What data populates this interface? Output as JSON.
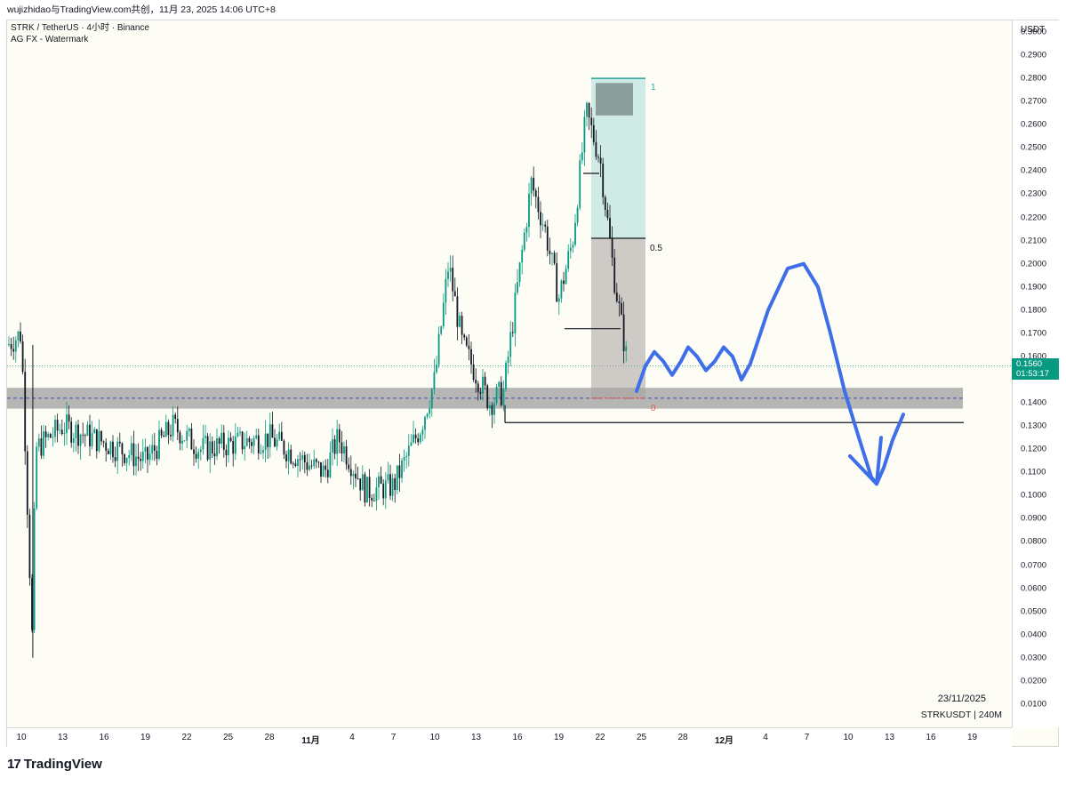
{
  "header": {
    "share_text": "wujizhidao与TradingView.com共创，11月 23, 2025 14:06 UTC+8"
  },
  "legend": {
    "symbol_line": "STRK / TetherUS · 4小时 · Binance",
    "indicator_line": "AG FX - Watermark"
  },
  "y_axis": {
    "unit": "USDT",
    "ticks": [
      "0.3000",
      "0.2900",
      "0.2800",
      "0.2700",
      "0.2600",
      "0.2500",
      "0.2400",
      "0.2300",
      "0.2200",
      "0.2100",
      "0.2000",
      "0.1900",
      "0.1800",
      "0.1700",
      "0.1600",
      "0.1400",
      "0.1300",
      "0.1200",
      "0.1100",
      "0.1000",
      "0.0900",
      "0.0800",
      "0.0700",
      "0.0600",
      "0.0500",
      "0.0400",
      "0.0300",
      "0.0200",
      "0.0100"
    ]
  },
  "last_price": {
    "value": "0.1560",
    "countdown": "01:53:17"
  },
  "x_axis": {
    "ticks": [
      {
        "label": "10",
        "bold": false
      },
      {
        "label": "13",
        "bold": false
      },
      {
        "label": "16",
        "bold": false
      },
      {
        "label": "19",
        "bold": false
      },
      {
        "label": "22",
        "bold": false
      },
      {
        "label": "25",
        "bold": false
      },
      {
        "label": "28",
        "bold": false
      },
      {
        "label": "11月",
        "bold": true
      },
      {
        "label": "4",
        "bold": false
      },
      {
        "label": "7",
        "bold": false
      },
      {
        "label": "10",
        "bold": false
      },
      {
        "label": "13",
        "bold": false
      },
      {
        "label": "16",
        "bold": false
      },
      {
        "label": "19",
        "bold": false
      },
      {
        "label": "22",
        "bold": false
      },
      {
        "label": "25",
        "bold": false
      },
      {
        "label": "28",
        "bold": false
      },
      {
        "label": "12月",
        "bold": true
      },
      {
        "label": "4",
        "bold": false
      },
      {
        "label": "7",
        "bold": false
      },
      {
        "label": "10",
        "bold": false
      },
      {
        "label": "13",
        "bold": false
      },
      {
        "label": "16",
        "bold": false
      },
      {
        "label": "19",
        "bold": false
      }
    ]
  },
  "fib_labels": {
    "one": "1",
    "half": "0.5",
    "zero": "0"
  },
  "stamp": {
    "date": "23/11/2025",
    "symbol": "STRKUSDT | 240M"
  },
  "brand": {
    "logo": "17",
    "name": "TradingView"
  },
  "colors": {
    "bull": "#089981",
    "bear": "#131722",
    "fib_fill": "#b2dfdb",
    "zone_fill": "#9e9e9e",
    "drawing": "#3e6ee8",
    "price_tag": "#089981"
  },
  "chart_data": {
    "type": "candlestick",
    "symbol": "STRKUSDT",
    "interval": "4小时",
    "ylim": [
      0.0,
      0.305
    ],
    "last": 0.156,
    "close_path": [
      {
        "date": "2025-10-09",
        "price": 0.165
      },
      {
        "date": "2025-10-10",
        "price": 0.17
      },
      {
        "date": "2025-10-10T20",
        "price": 0.03
      },
      {
        "date": "2025-10-11",
        "price": 0.12
      },
      {
        "date": "2025-10-13",
        "price": 0.13
      },
      {
        "date": "2025-10-16",
        "price": 0.123
      },
      {
        "date": "2025-10-19",
        "price": 0.115
      },
      {
        "date": "2025-10-21",
        "price": 0.13
      },
      {
        "date": "2025-10-23",
        "price": 0.12
      },
      {
        "date": "2025-10-25",
        "price": 0.122
      },
      {
        "date": "2025-10-28",
        "price": 0.125
      },
      {
        "date": "2025-10-31",
        "price": 0.113
      },
      {
        "date": "2025-11-01",
        "price": 0.11
      },
      {
        "date": "2025-11-02",
        "price": 0.125
      },
      {
        "date": "2025-11-04",
        "price": 0.102
      },
      {
        "date": "2025-11-06",
        "price": 0.104
      },
      {
        "date": "2025-11-08",
        "price": 0.13
      },
      {
        "date": "2025-11-09",
        "price": 0.15
      },
      {
        "date": "2025-11-10",
        "price": 0.2
      },
      {
        "date": "2025-11-11",
        "price": 0.165
      },
      {
        "date": "2025-11-13",
        "price": 0.14
      },
      {
        "date": "2025-11-14",
        "price": 0.145
      },
      {
        "date": "2025-11-15",
        "price": 0.19
      },
      {
        "date": "2025-11-16",
        "price": 0.235
      },
      {
        "date": "2025-11-17",
        "price": 0.215
      },
      {
        "date": "2025-11-18",
        "price": 0.185
      },
      {
        "date": "2025-11-19",
        "price": 0.21
      },
      {
        "date": "2025-11-20",
        "price": 0.265
      },
      {
        "date": "2025-11-21",
        "price": 0.245
      },
      {
        "date": "2025-11-22",
        "price": 0.195
      },
      {
        "date": "2025-11-23",
        "price": 0.156
      }
    ],
    "fib_retracement": {
      "level_1": 0.28,
      "level_0_5": 0.211,
      "level_0": 0.142
    },
    "support_zone": [
      0.1375,
      0.1465
    ],
    "horizontal_line": 0.1315
  }
}
